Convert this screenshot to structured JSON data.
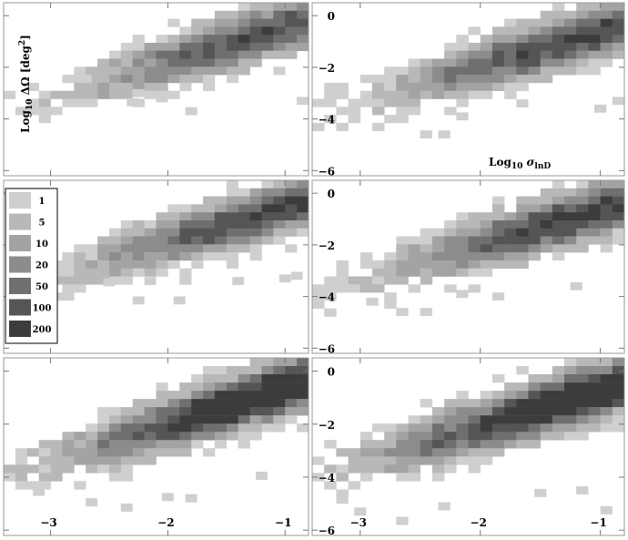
{
  "chart_data": {
    "type": "heatmap",
    "title": "",
    "layout": "3 rows x 2 columns of panels with shared axes",
    "xlabel": "Log10 σlnD",
    "ylabel": "Log10 ΔΩ [deg²]",
    "xlim": [
      -3.4,
      -0.8
    ],
    "ylim": [
      -6.2,
      0.5
    ],
    "xticks": [
      -3,
      -2,
      -1
    ],
    "xtick_labels": [
      "−3",
      "−2",
      "−1"
    ],
    "yticks": [
      0,
      -2,
      -4,
      -6
    ],
    "ytick_labels": [
      "0",
      "−2",
      "−4",
      "−6"
    ],
    "legend": {
      "placement": "left-middle",
      "levels": [
        {
          "label": "1",
          "color": "#cfcfcf"
        },
        {
          "label": "5",
          "color": "#b8b8b8"
        },
        {
          "label": "10",
          "color": "#a3a3a3"
        },
        {
          "label": "20",
          "color": "#8c8c8c"
        },
        {
          "label": "50",
          "color": "#6f6f6f"
        },
        {
          "label": "100",
          "color": "#555555"
        },
        {
          "label": "200",
          "color": "#3c3c3c"
        }
      ]
    },
    "panels": [
      {
        "row": 0,
        "col": 0,
        "cx": -1.2,
        "cy": -0.7,
        "spread": 0.55,
        "peak": 0.75,
        "strays": [
          [
            -2.75,
            -2.45
          ],
          [
            -2.3,
            -3.0
          ],
          [
            -2.35,
            -3.35
          ],
          [
            -2.1,
            -3.2
          ],
          [
            -1.85,
            -3.7
          ],
          [
            -0.9,
            -3.3
          ]
        ]
      },
      {
        "row": 0,
        "col": 1,
        "cx": -1.2,
        "cy": -0.9,
        "spread": 0.6,
        "peak": 0.8,
        "strays": [
          [
            -3.0,
            -3.3
          ],
          [
            -2.2,
            -3.9
          ],
          [
            -1.7,
            -3.4
          ],
          [
            -1.05,
            -3.6
          ],
          [
            -0.9,
            -3.3
          ],
          [
            -2.5,
            -4.6
          ],
          [
            -2.35,
            -4.6
          ]
        ]
      },
      {
        "row": 1,
        "col": 0,
        "cx": -1.15,
        "cy": -0.75,
        "spread": 0.6,
        "peak": 0.8,
        "strays": [
          [
            -3.15,
            -3.15
          ],
          [
            -2.55,
            -3.45
          ],
          [
            -2.2,
            -3.4
          ],
          [
            -2.3,
            -4.15
          ],
          [
            -1.95,
            -4.15
          ],
          [
            -1.45,
            -3.4
          ],
          [
            -1.05,
            -3.3
          ],
          [
            -0.95,
            -3.2
          ]
        ]
      },
      {
        "row": 1,
        "col": 1,
        "cx": -1.15,
        "cy": -0.85,
        "spread": 0.65,
        "peak": 0.85,
        "strays": [
          [
            -3.2,
            -3.5
          ],
          [
            -2.95,
            -4.2
          ],
          [
            -2.7,
            -4.6
          ],
          [
            -2.5,
            -4.6
          ],
          [
            -1.9,
            -4.0
          ],
          [
            -1.25,
            -3.6
          ],
          [
            -2.2,
            -3.9
          ]
        ]
      },
      {
        "row": 2,
        "col": 0,
        "cx": -1.15,
        "cy": -0.85,
        "spread": 0.75,
        "peak": 1.0,
        "strays": [
          [
            -3.15,
            -4.55
          ],
          [
            -2.7,
            -4.95
          ],
          [
            -2.4,
            -5.15
          ],
          [
            -2.05,
            -4.75
          ],
          [
            -1.85,
            -4.8
          ],
          [
            -1.25,
            -3.95
          ]
        ]
      },
      {
        "row": 2,
        "col": 1,
        "cx": -1.15,
        "cy": -0.95,
        "spread": 0.8,
        "peak": 1.0,
        "strays": [
          [
            -3.2,
            -4.85
          ],
          [
            -3.05,
            -5.3
          ],
          [
            -2.7,
            -5.65
          ],
          [
            -2.35,
            -5.1
          ],
          [
            -1.55,
            -4.6
          ],
          [
            -1.0,
            -5.25
          ],
          [
            -1.2,
            -4.5
          ]
        ]
      }
    ]
  }
}
